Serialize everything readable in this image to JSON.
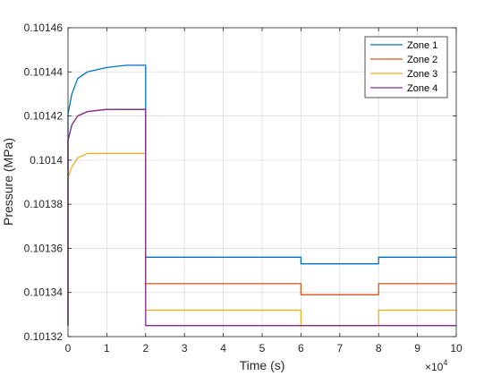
{
  "chart_data": {
    "type": "line",
    "xlabel": "Time (s)",
    "ylabel": "Pressure (MPa)",
    "x_multiplier_base": "×10",
    "x_multiplier_exp": "4",
    "xlim": [
      0,
      10
    ],
    "ylim": [
      0.10132,
      0.10146
    ],
    "xticks": [
      "0",
      "1",
      "2",
      "3",
      "4",
      "5",
      "6",
      "7",
      "8",
      "9",
      "10"
    ],
    "yticks": [
      "0.10132",
      "0.10134",
      "0.10136",
      "0.10138",
      "0.1014",
      "0.10142",
      "0.10144",
      "0.10146"
    ],
    "grid": true,
    "legend_position": "top-right",
    "series": [
      {
        "name": "Zone 1",
        "color": "#0072BD",
        "points": [
          [
            0,
            0.101325
          ],
          [
            0,
            0.101421
          ],
          [
            0.1,
            0.10143
          ],
          [
            0.25,
            0.101437
          ],
          [
            0.5,
            0.10144
          ],
          [
            1,
            0.101442
          ],
          [
            1.5,
            0.101443
          ],
          [
            2,
            0.101443
          ],
          [
            2,
            0.101356
          ],
          [
            6,
            0.101356
          ],
          [
            6,
            0.101353
          ],
          [
            8,
            0.101353
          ],
          [
            8,
            0.101356
          ],
          [
            10,
            0.101356
          ]
        ]
      },
      {
        "name": "Zone 2",
        "color": "#D95319",
        "points": [
          [
            0,
            0.101325
          ],
          [
            0,
            0.101409
          ],
          [
            0.1,
            0.101416
          ],
          [
            0.25,
            0.10142
          ],
          [
            0.5,
            0.101422
          ],
          [
            1,
            0.101423
          ],
          [
            2,
            0.101423
          ],
          [
            2,
            0.101344
          ],
          [
            6,
            0.101344
          ],
          [
            6,
            0.101339
          ],
          [
            8,
            0.101339
          ],
          [
            8,
            0.101344
          ],
          [
            10,
            0.101344
          ]
        ]
      },
      {
        "name": "Zone 3",
        "color": "#EDB120",
        "points": [
          [
            0,
            0.101325
          ],
          [
            0,
            0.101392
          ],
          [
            0.1,
            0.101397
          ],
          [
            0.25,
            0.101401
          ],
          [
            0.5,
            0.101403
          ],
          [
            1,
            0.101403
          ],
          [
            2,
            0.101403
          ],
          [
            2,
            0.101332
          ],
          [
            6,
            0.101332
          ],
          [
            6,
            0.101325
          ],
          [
            8,
            0.101325
          ],
          [
            8,
            0.101332
          ],
          [
            10,
            0.101332
          ]
        ]
      },
      {
        "name": "Zone 4",
        "color": "#7E2F8E",
        "points": [
          [
            0,
            0.101325
          ],
          [
            0,
            0.101409
          ],
          [
            0.1,
            0.101416
          ],
          [
            0.25,
            0.10142
          ],
          [
            0.5,
            0.101422
          ],
          [
            1,
            0.101423
          ],
          [
            2,
            0.101423
          ],
          [
            2,
            0.101325
          ],
          [
            10,
            0.101325
          ]
        ]
      }
    ]
  }
}
